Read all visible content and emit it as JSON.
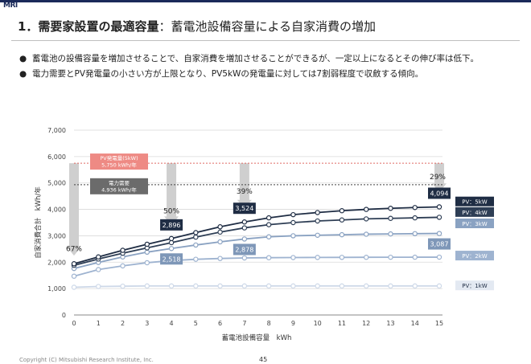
{
  "header": {
    "logo": "MRI",
    "title_bold": "1．需要家設置の最適容量",
    "title_rest": "：蓄電池設備容量による自家消費の増加"
  },
  "bullets": [
    "蓄電池の設備容量を増加させることで、自家消費を増加させることができるが、一定以上になるとその伸び率は低下。",
    "電力需要とPV発電量の小さい方が上限となり、PV5kWの発電量に対しては7割弱程度で収斂する傾向。"
  ],
  "footer": {
    "copyright": "Copyright (C) Mitsubishi Research Institute, Inc.",
    "page": "45"
  },
  "chart_data": {
    "type": "line",
    "xlabel": "蓄電池設備容量　kWh",
    "ylabel": "自家消費合計　kWh/年",
    "x": [
      0,
      1,
      2,
      3,
      4,
      5,
      6,
      7,
      8,
      9,
      10,
      11,
      12,
      13,
      14,
      15
    ],
    "xlim": [
      0,
      15
    ],
    "ylim": [
      0,
      7000
    ],
    "yticks": [
      0,
      1000,
      2000,
      3000,
      4000,
      5000,
      6000,
      7000
    ],
    "ytick_labels": [
      "0",
      "1,000",
      "2,000",
      "3,000",
      "4,000",
      "5,000",
      "6,000",
      "7,000"
    ],
    "series": [
      {
        "name": "PV：5kW",
        "color": "#1f2d44",
        "values": [
          1940,
          2200,
          2450,
          2680,
          2896,
          3120,
          3340,
          3524,
          3680,
          3800,
          3880,
          3950,
          4000,
          4040,
          4070,
          4094
        ]
      },
      {
        "name": "PV：4kW",
        "color": "#2e3e55",
        "values": [
          1880,
          2120,
          2340,
          2540,
          2740,
          2950,
          3140,
          3300,
          3420,
          3500,
          3560,
          3600,
          3640,
          3660,
          3680,
          3700
        ]
      },
      {
        "name": "PV：3kW",
        "color": "#8aa2c2",
        "values": [
          1760,
          1990,
          2200,
          2380,
          2518,
          2650,
          2770,
          2878,
          2960,
          3000,
          3020,
          3040,
          3060,
          3070,
          3080,
          3087
        ]
      },
      {
        "name": "PV：2kW",
        "color": "#9eb3d0",
        "values": [
          1470,
          1720,
          1860,
          1980,
          2060,
          2110,
          2140,
          2160,
          2170,
          2175,
          2180,
          2182,
          2185,
          2187,
          2189,
          2190
        ]
      },
      {
        "name": "PV：1kW",
        "color": "#cdd8e8",
        "values": [
          1050,
          1080,
          1090,
          1100,
          1100,
          1100,
          1100,
          1100,
          1100,
          1100,
          1100,
          1100,
          1100,
          1100,
          1100,
          1100
        ]
      }
    ],
    "data_labels": [
      {
        "x": 4,
        "value": "2,896"
      },
      {
        "x": 7,
        "value": "3,524"
      },
      {
        "x": 15,
        "value": "4,094"
      },
      {
        "x": 4,
        "value": "2,518"
      },
      {
        "x": 7,
        "value": "2,878"
      },
      {
        "x": 15,
        "value": "3,087"
      }
    ],
    "reference_lines": [
      {
        "name": "PV発電量(5kW)",
        "value_label": "5,750 kWh/年",
        "value": 5750,
        "color": "#e06a64",
        "box_color": "#ee8a84"
      },
      {
        "name": "電力需要",
        "value_label": "4,936 kWh/年",
        "value": 4936,
        "color": "#444444",
        "box_color": "#6b6b6b"
      }
    ],
    "percent_arrows": [
      {
        "x": 0,
        "label": "67%"
      },
      {
        "x": 4,
        "label": "50%"
      },
      {
        "x": 7,
        "label": "39%"
      },
      {
        "x": 15,
        "label": "29%"
      }
    ],
    "grid": true,
    "legend": "right"
  }
}
